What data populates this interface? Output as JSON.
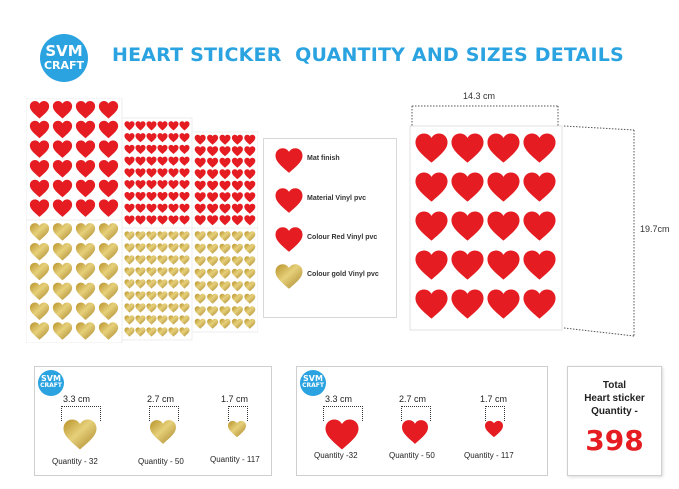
{
  "logo": {
    "line1": "SVM",
    "line2": "CRAFT"
  },
  "title": "HEART STICKER  QUANTITY AND SIZES DETAILS",
  "colors": {
    "red": "#e51d22",
    "gold": "#c9a92f",
    "blue": "#2aa3e0"
  },
  "legend": [
    {
      "label": "Mat finish",
      "color": "red"
    },
    {
      "label": "Material Vinyl pvc",
      "color": "red"
    },
    {
      "label": "Colour Red Vinyl pvc",
      "color": "red"
    },
    {
      "label": "Colour gold Vinyl pvc",
      "color": "gold"
    }
  ],
  "dimensions": {
    "width": "14.3 cm",
    "height": "19.7cm"
  },
  "gold_panel": {
    "items": [
      {
        "size": "3.3 cm",
        "quantity": "Quantity - 32"
      },
      {
        "size": "2.7 cm",
        "quantity": "Quantity - 50"
      },
      {
        "size": "1.7 cm",
        "quantity": "Quantity - 117"
      }
    ]
  },
  "red_panel": {
    "items": [
      {
        "size": "3.3 cm",
        "quantity": "Quantity -32"
      },
      {
        "size": "2.7 cm",
        "quantity": "Quantity - 50"
      },
      {
        "size": "1.7 cm",
        "quantity": "Quantity - 117"
      }
    ]
  },
  "total": {
    "line1": "Total",
    "line2": "Heart sticker",
    "line3": "Quantity -",
    "value": "398"
  }
}
